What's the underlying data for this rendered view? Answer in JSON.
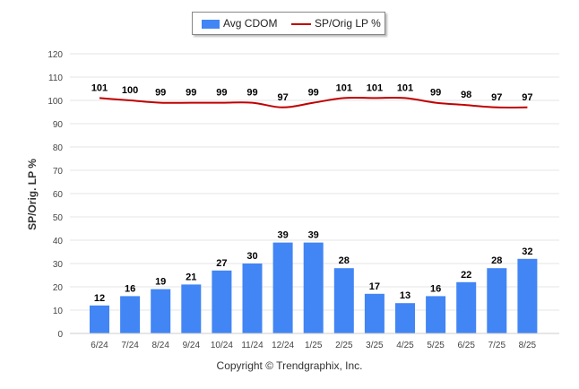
{
  "chart_data": {
    "type": "bar+line",
    "categories": [
      "6/24",
      "7/24",
      "8/24",
      "9/24",
      "10/24",
      "11/24",
      "12/24",
      "1/25",
      "2/25",
      "3/25",
      "4/25",
      "5/25",
      "6/25",
      "7/25",
      "8/25"
    ],
    "series": [
      {
        "name": "Avg CDOM",
        "type": "bar",
        "values": [
          12,
          16,
          19,
          21,
          27,
          30,
          39,
          39,
          28,
          17,
          13,
          16,
          22,
          28,
          32
        ]
      },
      {
        "name": "SP/Orig LP %",
        "type": "line",
        "values": [
          101,
          100,
          99,
          99,
          99,
          99,
          97,
          99,
          101,
          101,
          101,
          99,
          98,
          97,
          97
        ]
      }
    ],
    "ylabel": "SP/Orig. LP %",
    "ylim": [
      0,
      120
    ],
    "yticks": [
      0,
      10,
      20,
      30,
      40,
      50,
      60,
      70,
      80,
      90,
      100,
      110,
      120
    ],
    "grid": true,
    "legend_position": "top-center",
    "colors": {
      "bar": "#4285f4",
      "line": "#c00000",
      "grid": "#e6e6e6",
      "label": "#000000"
    }
  },
  "footer": "Copyright © Trendgraphix, Inc."
}
